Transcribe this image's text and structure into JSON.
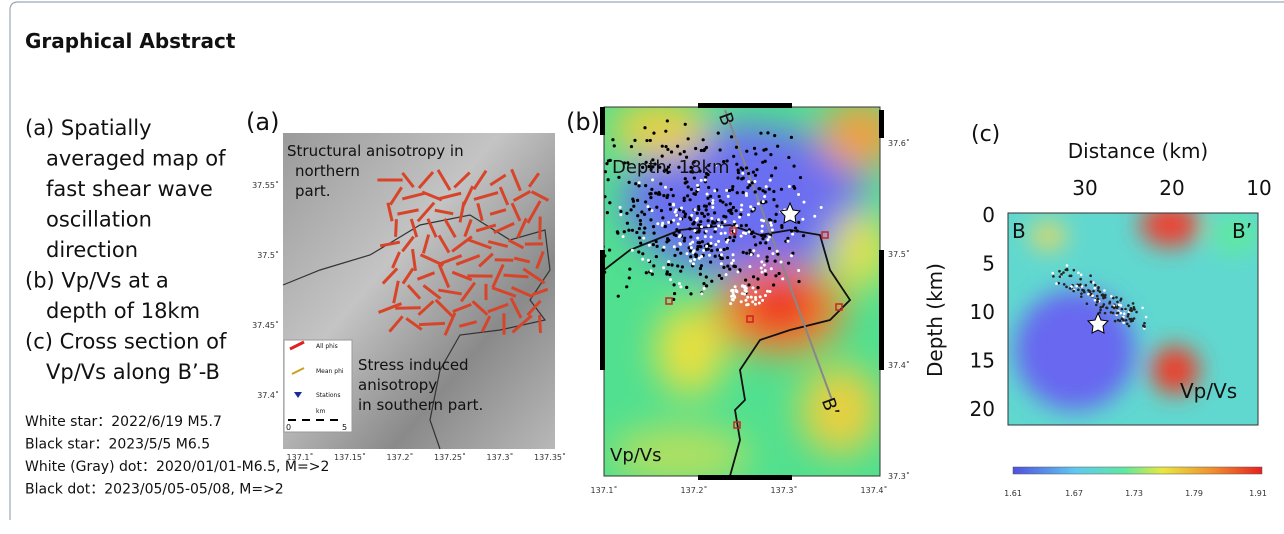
{
  "header": {
    "title": "Graphical Abstract"
  },
  "caption": {
    "items": [
      "(a) Spatially",
      "averaged map of",
      "fast shear wave",
      "oscillation",
      "direction",
      "(b) Vp/Vs at a",
      "depth of 18km",
      "(c) Cross section of",
      "Vp/Vs along B’-B"
    ],
    "notes": [
      "White star：2022/6/19 M5.7",
      "Black star：2023/5/5 M6.5",
      "White (Gray) dot：2020/01/01-M6.5, M=>2",
      "Black dot：2023/05/05-05/08, M=>2"
    ]
  },
  "panel_a": {
    "label": "(a)",
    "annotations": [
      "Structural anisotropy in",
      "northern",
      "part.",
      "Stress induced",
      "anisotropy",
      "in southern part."
    ],
    "legend": [
      "All phis",
      "Mean phi",
      "Stations",
      "km"
    ],
    "scale": [
      "0",
      "5"
    ],
    "xticks": [
      "137.1˚",
      "137.15˚",
      "137.2˚",
      "137.25˚",
      "137.3˚",
      "137.35˚"
    ],
    "yticks": [
      "37.55˚",
      "37.5˚",
      "37.45˚",
      "37.4˚"
    ]
  },
  "panel_b": {
    "label": "(b)",
    "depth": "Depth: 18km",
    "section_start": "B",
    "section_end": "B’",
    "quantity": "Vp/Vs",
    "xticks": [
      "137.1˚",
      "137.2˚",
      "137.3˚",
      "137.4˚"
    ],
    "yticks": [
      "37.6˚",
      "37.5˚",
      "37.4˚",
      "37.3˚"
    ]
  },
  "panel_c": {
    "label": "(c)",
    "x_title": "Distance (km)",
    "y_title": "Depth (km)",
    "xticks": [
      "30",
      "20",
      "10"
    ],
    "yticks": [
      "0",
      "5",
      "10",
      "15",
      "20"
    ],
    "ends": [
      "B",
      "B’"
    ],
    "quantity": "Vp/Vs",
    "colorbar_ticks": [
      "1.61",
      "1.67",
      "1.73",
      "1.79",
      "1.91"
    ]
  }
}
